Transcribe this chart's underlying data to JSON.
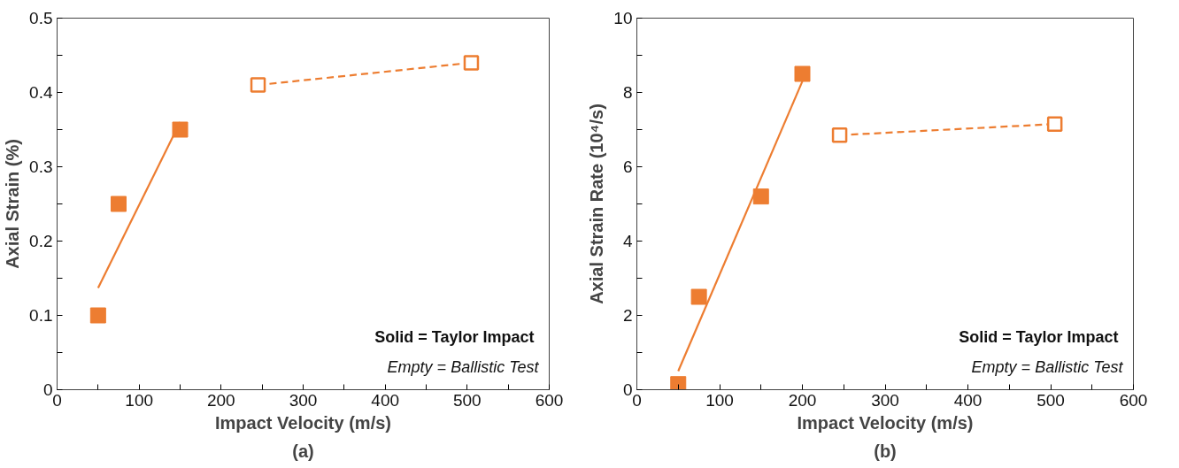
{
  "chart_data": [
    {
      "type": "scatter",
      "xlabel": "Impact Velocity (m/s)",
      "ylabel": "Axial Strain (%)",
      "xlim": [
        0,
        600
      ],
      "ylim": [
        0,
        0.5
      ],
      "xticks": [
        0,
        {
          "value": 50,
          "label": null
        },
        100,
        {
          "value": 150,
          "label": null
        },
        200,
        {
          "value": 250,
          "label": null
        },
        300,
        {
          "value": 350,
          "label": null
        },
        400,
        {
          "value": 450,
          "label": null
        },
        500,
        {
          "value": 550,
          "label": null
        },
        600
      ],
      "yticks": [
        0,
        {
          "value": 0.05,
          "label": null
        },
        0.1,
        {
          "value": 0.15,
          "label": null
        },
        0.2,
        {
          "value": 0.25,
          "label": null
        },
        0.3,
        {
          "value": 0.35,
          "label": null
        },
        0.4,
        {
          "value": 0.45,
          "label": null
        },
        0.5
      ],
      "grid": false,
      "annotations": [
        "Solid = Taylor  Impact",
        "Empty = Ballistic Test",
        "(a)"
      ],
      "series": [
        {
          "marker": "square",
          "color": "#ed7d31",
          "x": [
            50,
            75,
            150
          ],
          "values": [
            0.1,
            0.25,
            0.35
          ]
        },
        {
          "type": "line",
          "marker": "none",
          "line_style": "solid",
          "color": "#ed7d31",
          "x": [
            50,
            150
          ],
          "values": [
            0.137,
            0.36
          ]
        },
        {
          "type": "line",
          "marker": "square",
          "line_style": "dashed",
          "color": "#ed7d31",
          "x": [
            245,
            505
          ],
          "values": [
            0.41,
            0.44
          ]
        }
      ]
    },
    {
      "type": "scatter",
      "xlabel": "Impact Velocity (m/s)",
      "ylabel": "Axial Strain Rate (10⁴/s)",
      "xlim": [
        0,
        600
      ],
      "ylim": [
        0,
        10
      ],
      "xticks": [
        0,
        {
          "value": 50,
          "label": null
        },
        100,
        {
          "value": 150,
          "label": null
        },
        200,
        {
          "value": 250,
          "label": null
        },
        300,
        {
          "value": 350,
          "label": null
        },
        400,
        {
          "value": 450,
          "label": null
        },
        500,
        {
          "value": 550,
          "label": null
        },
        600
      ],
      "yticks": [
        0,
        {
          "value": 1,
          "label": null
        },
        2,
        {
          "value": 3,
          "label": null
        },
        4,
        {
          "value": 5,
          "label": null
        },
        6,
        {
          "value": 7,
          "label": null
        },
        8,
        {
          "value": 9,
          "label": null
        },
        10
      ],
      "grid": false,
      "annotations": [
        "Solid = Taylor  Impact",
        "Empty = Ballistic Test",
        "(b)"
      ],
      "series": [
        {
          "marker": "square",
          "color": "#ed7d31",
          "x": [
            50,
            75,
            150,
            200
          ],
          "values": [
            0.15,
            2.5,
            5.2,
            8.5
          ]
        },
        {
          "type": "line",
          "marker": "none",
          "line_style": "solid",
          "color": "#ed7d31",
          "x": [
            50,
            200
          ],
          "values": [
            0.5,
            8.3
          ]
        },
        {
          "type": "line",
          "marker": "square",
          "line_style": "dashed",
          "color": "#ed7d31",
          "x": [
            245,
            505
          ],
          "values": [
            6.85,
            7.15
          ]
        }
      ]
    }
  ]
}
